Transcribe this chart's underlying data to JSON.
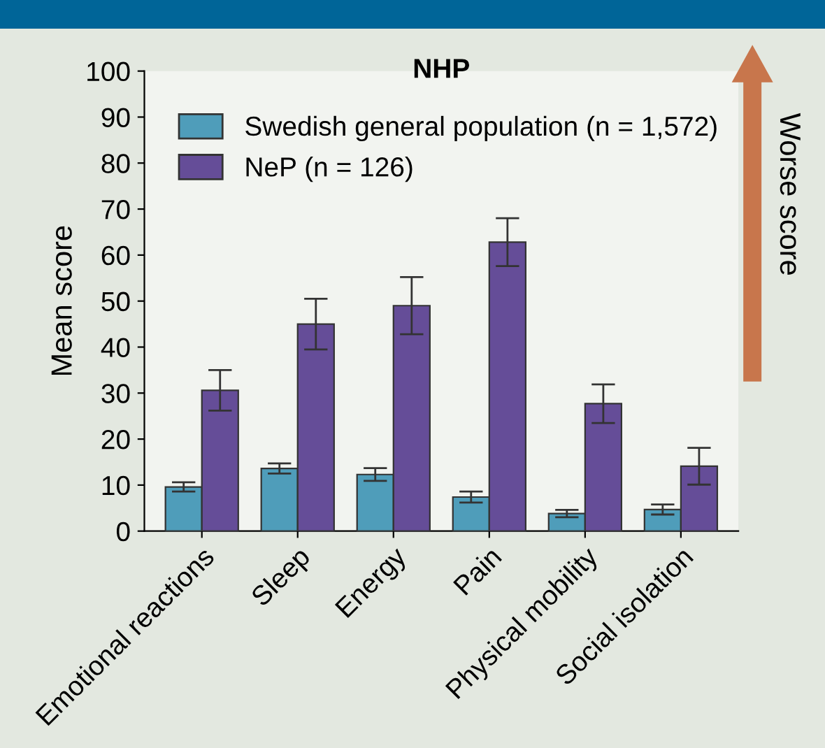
{
  "chart_data": {
    "type": "bar",
    "title": "NHP",
    "ylabel": "Mean score",
    "categories": [
      "Emotional reactions",
      "Sleep",
      "Energy",
      "Pain",
      "Physical mobility",
      "Social isolation"
    ],
    "series": [
      {
        "name": "Swedish general population (n = 1,572)",
        "color": "#4f9dba",
        "values": [
          9.6,
          13.6,
          12.3,
          7.4,
          3.8,
          4.7
        ],
        "errors": [
          1.0,
          1.1,
          1.4,
          1.2,
          0.8,
          1.1
        ]
      },
      {
        "name": "NeP (n = 126)",
        "color": "#654d98",
        "values": [
          30.6,
          45.0,
          49.0,
          62.8,
          27.7,
          14.1
        ],
        "errors": [
          4.4,
          5.5,
          6.2,
          5.2,
          4.2,
          4.0
        ]
      }
    ],
    "ylim": [
      0,
      100
    ],
    "yticks": [
      0,
      10,
      20,
      30,
      40,
      50,
      60,
      70,
      80,
      90,
      100
    ],
    "grid": false,
    "legend": "top left",
    "annotations": [
      "Worse score"
    ]
  }
}
